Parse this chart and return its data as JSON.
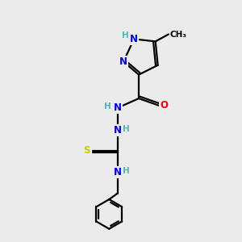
{
  "bg_color": "#ebebeb",
  "bond_color": "#000000",
  "bond_width": 1.6,
  "atom_colors": {
    "N": "#0000ff",
    "O": "#ff0000",
    "S": "#cccc00",
    "C": "#000000",
    "H": "#4db8b8"
  },
  "font_size_atom": 8.5,
  "font_size_H": 7.5,
  "font_size_methyl": 7.5
}
